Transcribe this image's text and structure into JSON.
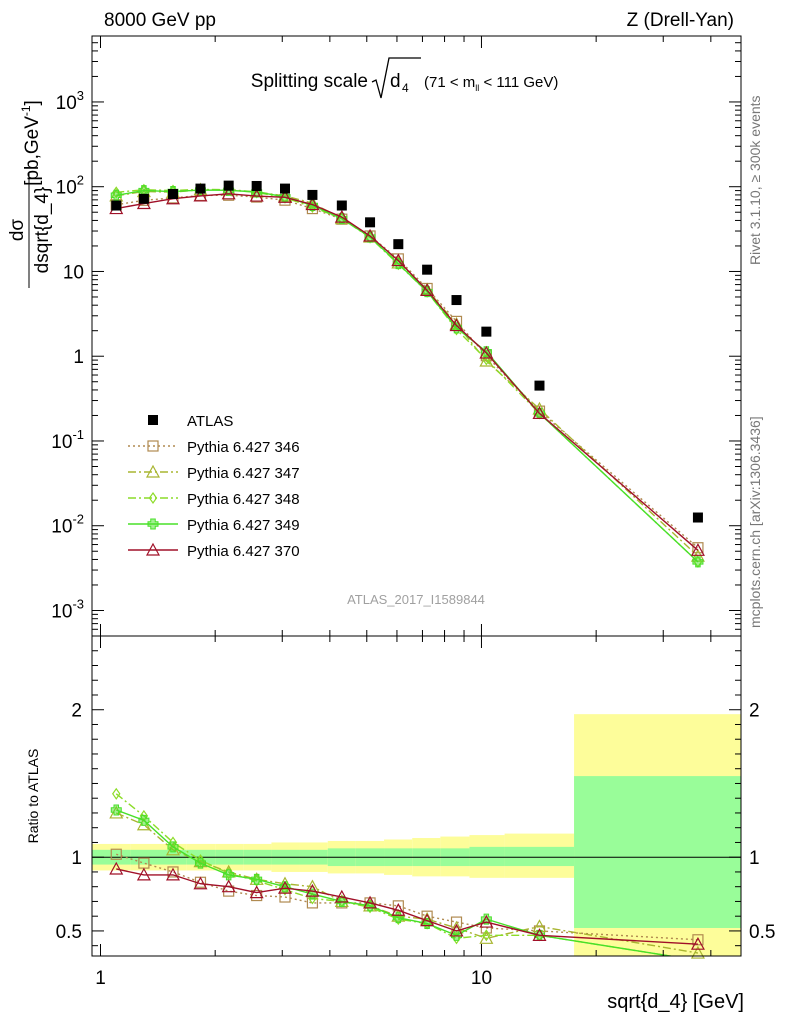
{
  "header": {
    "left": "8000 GeV pp",
    "right": "Z (Drell-Yan)"
  },
  "side_labels": {
    "rivet": "Rivet 3.1.10, ≥ 300k events",
    "mcplots": "mcplots.cern.ch [arXiv:1306.3436]"
  },
  "analysis_id": "ATLAS_2017_I1589844",
  "plot_title": {
    "main": "Splitting scale",
    "symbol": "d",
    "symbol_sub": "4",
    "range_pre": "(71 < m",
    "range_sub": "ll",
    "range_post": " < 111 GeV)"
  },
  "y_label_top": {
    "numerator": "dσ",
    "denominator": "dsqrt{d_4}",
    "units": "[pb,GeV",
    "units_sup": "-1",
    "units_close": "]"
  },
  "y_label_bottom": "Ratio to ATLAS",
  "x_label": "sqrt{d_4} [GeV]",
  "main_y_ticks": [
    {
      "value": 0.001,
      "base": "10",
      "exp": "-3"
    },
    {
      "value": 0.01,
      "base": "10",
      "exp": "-2"
    },
    {
      "value": 0.1,
      "base": "10",
      "exp": "-1"
    },
    {
      "value": 1,
      "base": "1",
      "exp": ""
    },
    {
      "value": 10,
      "base": "10",
      "exp": ""
    },
    {
      "value": 100,
      "base": "10",
      "exp": "2"
    },
    {
      "value": 1000,
      "base": "10",
      "exp": "3"
    }
  ],
  "ratio_y_ticks": [
    {
      "value": 0.5,
      "label": "0.5"
    },
    {
      "value": 1,
      "label": "1"
    },
    {
      "value": 2,
      "label": "2"
    }
  ],
  "x_ticks": [
    {
      "value": 1,
      "label": "1"
    },
    {
      "value": 10,
      "label": "10"
    }
  ],
  "chart_data": {
    "type": "scatter",
    "x_scale": "log",
    "y_scale": "log",
    "xlim": [
      0.95,
      48
    ],
    "ylim": [
      0.0005,
      6000
    ],
    "ratio_ylim": [
      0.33,
      2.5
    ],
    "xlabel": "sqrt{d_4} [GeV]",
    "ylabel": "dσ/dsqrt{d_4} [pb,GeV^-1]",
    "legend_position": "bottom-left",
    "x": [
      1.1,
      1.3,
      1.55,
      1.83,
      2.17,
      2.57,
      3.05,
      3.6,
      4.3,
      5.1,
      6.05,
      7.2,
      8.6,
      10.3,
      14.2,
      37
    ],
    "bands": [
      {
        "x0": 0.95,
        "x1": 1.2,
        "green": [
          0.95,
          1.05
        ],
        "yellow": [
          0.91,
          1.09
        ]
      },
      {
        "x0": 1.2,
        "x1": 1.42,
        "green": [
          0.95,
          1.05
        ],
        "yellow": [
          0.91,
          1.09
        ]
      },
      {
        "x0": 1.42,
        "x1": 1.68,
        "green": [
          0.95,
          1.05
        ],
        "yellow": [
          0.91,
          1.09
        ]
      },
      {
        "x0": 1.68,
        "x1": 2.0,
        "green": [
          0.95,
          1.05
        ],
        "yellow": [
          0.91,
          1.09
        ]
      },
      {
        "x0": 2.0,
        "x1": 2.37,
        "green": [
          0.95,
          1.05
        ],
        "yellow": [
          0.91,
          1.09
        ]
      },
      {
        "x0": 2.37,
        "x1": 2.81,
        "green": [
          0.95,
          1.05
        ],
        "yellow": [
          0.91,
          1.09
        ]
      },
      {
        "x0": 2.81,
        "x1": 3.33,
        "green": [
          0.95,
          1.05
        ],
        "yellow": [
          0.9,
          1.1
        ]
      },
      {
        "x0": 3.33,
        "x1": 3.95,
        "green": [
          0.95,
          1.05
        ],
        "yellow": [
          0.9,
          1.1
        ]
      },
      {
        "x0": 3.95,
        "x1": 4.68,
        "green": [
          0.94,
          1.06
        ],
        "yellow": [
          0.89,
          1.11
        ]
      },
      {
        "x0": 4.68,
        "x1": 5.55,
        "green": [
          0.94,
          1.06
        ],
        "yellow": [
          0.89,
          1.11
        ]
      },
      {
        "x0": 5.55,
        "x1": 6.58,
        "green": [
          0.94,
          1.06
        ],
        "yellow": [
          0.88,
          1.12
        ]
      },
      {
        "x0": 6.58,
        "x1": 7.8,
        "green": [
          0.94,
          1.06
        ],
        "yellow": [
          0.87,
          1.13
        ]
      },
      {
        "x0": 7.8,
        "x1": 9.3,
        "green": [
          0.94,
          1.06
        ],
        "yellow": [
          0.87,
          1.14
        ]
      },
      {
        "x0": 9.3,
        "x1": 11.5,
        "green": [
          0.94,
          1.07
        ],
        "yellow": [
          0.86,
          1.15
        ]
      },
      {
        "x0": 11.5,
        "x1": 17.5,
        "green": [
          0.94,
          1.07
        ],
        "yellow": [
          0.86,
          1.16
        ]
      },
      {
        "x0": 17.5,
        "x1": 48,
        "green": [
          0.52,
          1.55
        ],
        "yellow": [
          0.33,
          1.97
        ]
      }
    ],
    "atlas": [
      60,
      72,
      82,
      95,
      103,
      102,
      95,
      80,
      60,
      38,
      21,
      10.5,
      4.6,
      1.95,
      0.45,
      0.0125
    ],
    "series": [
      {
        "name": "Pythia 6.427 346",
        "color": "#b08a50",
        "dash": "2,3",
        "marker": "square",
        "ratio": [
          1.02,
          0.96,
          0.9,
          0.83,
          0.77,
          0.74,
          0.73,
          0.69,
          0.69,
          0.69,
          0.67,
          0.6,
          0.56,
          0.52,
          0.5,
          0.44
        ]
      },
      {
        "name": "Pythia 6.427 347",
        "color": "#a8b530",
        "dash": "8,3,2,3",
        "marker": "triangle",
        "ratio": [
          1.3,
          1.22,
          1.05,
          0.97,
          0.9,
          0.85,
          0.82,
          0.8,
          0.7,
          0.67,
          0.6,
          0.58,
          0.52,
          0.45,
          0.53,
          0.35
        ]
      },
      {
        "name": "Pythia 6.427 348",
        "color": "#8cdc28",
        "dash": "8,3,2,3",
        "marker": "diamond",
        "ratio": [
          1.43,
          1.28,
          1.1,
          0.98,
          0.89,
          0.84,
          0.78,
          0.72,
          0.7,
          0.66,
          0.58,
          0.55,
          0.45,
          0.47,
          0.47,
          0.3
        ]
      },
      {
        "name": "Pythia 6.427 349",
        "color": "#48e028",
        "dash": "",
        "marker": "cross",
        "ratio": [
          1.32,
          1.25,
          1.07,
          0.96,
          0.88,
          0.85,
          0.8,
          0.75,
          0.7,
          0.67,
          0.59,
          0.55,
          0.47,
          0.58,
          0.47,
          0.3
        ]
      },
      {
        "name": "Pythia 6.427 370",
        "color": "#a01028",
        "dash": "",
        "marker": "triangle",
        "ratio": [
          0.92,
          0.88,
          0.88,
          0.82,
          0.8,
          0.76,
          0.79,
          0.77,
          0.73,
          0.69,
          0.64,
          0.57,
          0.5,
          0.56,
          0.47,
          0.41
        ]
      }
    ],
    "atlas_legend": "ATLAS"
  }
}
